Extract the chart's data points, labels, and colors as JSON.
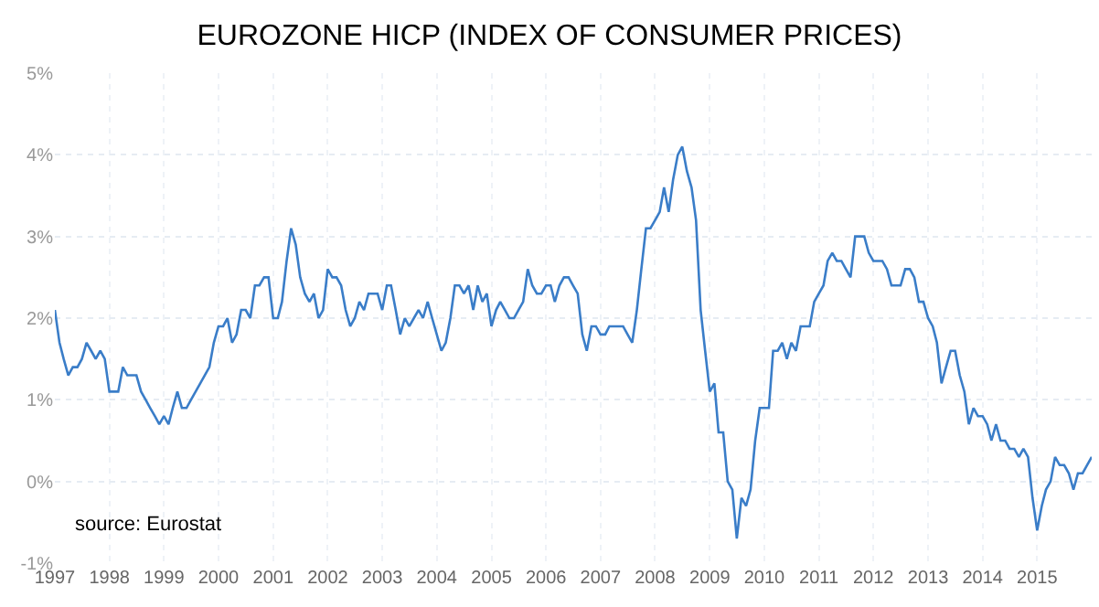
{
  "chart_data": {
    "type": "line",
    "title": "EUROZONE HICP (INDEX OF CONSUMER PRICES)",
    "x": [
      "1997-01",
      "1997-02",
      "1997-03",
      "1997-04",
      "1997-05",
      "1997-06",
      "1997-07",
      "1997-08",
      "1997-09",
      "1997-10",
      "1997-11",
      "1997-12",
      "1998-01",
      "1998-02",
      "1998-03",
      "1998-04",
      "1998-05",
      "1998-06",
      "1998-07",
      "1998-08",
      "1998-09",
      "1998-10",
      "1998-11",
      "1998-12",
      "1999-01",
      "1999-02",
      "1999-03",
      "1999-04",
      "1999-05",
      "1999-06",
      "1999-07",
      "1999-08",
      "1999-09",
      "1999-10",
      "1999-11",
      "1999-12",
      "2000-01",
      "2000-02",
      "2000-03",
      "2000-04",
      "2000-05",
      "2000-06",
      "2000-07",
      "2000-08",
      "2000-09",
      "2000-10",
      "2000-11",
      "2000-12",
      "2001-01",
      "2001-02",
      "2001-03",
      "2001-04",
      "2001-05",
      "2001-06",
      "2001-07",
      "2001-08",
      "2001-09",
      "2001-10",
      "2001-11",
      "2001-12",
      "2002-01",
      "2002-02",
      "2002-03",
      "2002-04",
      "2002-05",
      "2002-06",
      "2002-07",
      "2002-08",
      "2002-09",
      "2002-10",
      "2002-11",
      "2002-12",
      "2003-01",
      "2003-02",
      "2003-03",
      "2003-04",
      "2003-05",
      "2003-06",
      "2003-07",
      "2003-08",
      "2003-09",
      "2003-10",
      "2003-11",
      "2003-12",
      "2004-01",
      "2004-02",
      "2004-03",
      "2004-04",
      "2004-05",
      "2004-06",
      "2004-07",
      "2004-08",
      "2004-09",
      "2004-10",
      "2004-11",
      "2004-12",
      "2005-01",
      "2005-02",
      "2005-03",
      "2005-04",
      "2005-05",
      "2005-06",
      "2005-07",
      "2005-08",
      "2005-09",
      "2005-10",
      "2005-11",
      "2005-12",
      "2006-01",
      "2006-02",
      "2006-03",
      "2006-04",
      "2006-05",
      "2006-06",
      "2006-07",
      "2006-08",
      "2006-09",
      "2006-10",
      "2006-11",
      "2006-12",
      "2007-01",
      "2007-02",
      "2007-03",
      "2007-04",
      "2007-05",
      "2007-06",
      "2007-07",
      "2007-08",
      "2007-09",
      "2007-10",
      "2007-11",
      "2007-12",
      "2008-01",
      "2008-02",
      "2008-03",
      "2008-04",
      "2008-05",
      "2008-06",
      "2008-07",
      "2008-08",
      "2008-09",
      "2008-10",
      "2008-11",
      "2008-12",
      "2009-01",
      "2009-02",
      "2009-03",
      "2009-04",
      "2009-05",
      "2009-06",
      "2009-07",
      "2009-08",
      "2009-09",
      "2009-10",
      "2009-11",
      "2009-12",
      "2010-01",
      "2010-02",
      "2010-03",
      "2010-04",
      "2010-05",
      "2010-06",
      "2010-07",
      "2010-08",
      "2010-09",
      "2010-10",
      "2010-11",
      "2010-12",
      "2011-01",
      "2011-02",
      "2011-03",
      "2011-04",
      "2011-05",
      "2011-06",
      "2011-07",
      "2011-08",
      "2011-09",
      "2011-10",
      "2011-11",
      "2011-12",
      "2012-01",
      "2012-02",
      "2012-03",
      "2012-04",
      "2012-05",
      "2012-06",
      "2012-07",
      "2012-08",
      "2012-09",
      "2012-10",
      "2012-11",
      "2012-12",
      "2013-01",
      "2013-02",
      "2013-03",
      "2013-04",
      "2013-05",
      "2013-06",
      "2013-07",
      "2013-08",
      "2013-09",
      "2013-10",
      "2013-11",
      "2013-12",
      "2014-01",
      "2014-02",
      "2014-03",
      "2014-04",
      "2014-05",
      "2014-06",
      "2014-07",
      "2014-08",
      "2014-09",
      "2014-10",
      "2014-11",
      "2014-12",
      "2015-01",
      "2015-02",
      "2015-03",
      "2015-04",
      "2015-05",
      "2015-06",
      "2015-07",
      "2015-08",
      "2015-09",
      "2015-10",
      "2015-11",
      "2015-12",
      "2016-01"
    ],
    "series": [
      {
        "color": "#3a7dc8",
        "values": [
          2.1,
          1.7,
          1.5,
          1.3,
          1.4,
          1.4,
          1.5,
          1.7,
          1.6,
          1.5,
          1.6,
          1.5,
          1.1,
          1.1,
          1.1,
          1.4,
          1.3,
          1.3,
          1.3,
          1.1,
          1.0,
          0.9,
          0.8,
          0.7,
          0.8,
          0.7,
          0.9,
          1.1,
          0.9,
          0.9,
          1.0,
          1.1,
          1.2,
          1.3,
          1.4,
          1.7,
          1.9,
          1.9,
          2.0,
          1.7,
          1.8,
          2.1,
          2.1,
          2.0,
          2.4,
          2.4,
          2.5,
          2.5,
          2.0,
          2.0,
          2.2,
          2.7,
          3.1,
          2.9,
          2.5,
          2.3,
          2.2,
          2.3,
          2.0,
          2.1,
          2.6,
          2.5,
          2.5,
          2.4,
          2.1,
          1.9,
          2.0,
          2.2,
          2.1,
          2.3,
          2.3,
          2.3,
          2.1,
          2.4,
          2.4,
          2.1,
          1.8,
          2.0,
          1.9,
          2.0,
          2.1,
          2.0,
          2.2,
          2.0,
          1.8,
          1.6,
          1.7,
          2.0,
          2.4,
          2.4,
          2.3,
          2.4,
          2.1,
          2.4,
          2.2,
          2.3,
          1.9,
          2.1,
          2.2,
          2.1,
          2.0,
          2.0,
          2.1,
          2.2,
          2.6,
          2.4,
          2.3,
          2.3,
          2.4,
          2.4,
          2.2,
          2.4,
          2.5,
          2.5,
          2.4,
          2.3,
          1.8,
          1.6,
          1.9,
          1.9,
          1.8,
          1.8,
          1.9,
          1.9,
          1.9,
          1.9,
          1.8,
          1.7,
          2.1,
          2.6,
          3.1,
          3.1,
          3.2,
          3.3,
          3.6,
          3.3,
          3.7,
          4.0,
          4.1,
          3.8,
          3.6,
          3.2,
          2.1,
          1.6,
          1.1,
          1.2,
          0.6,
          0.6,
          0.0,
          -0.1,
          -0.7,
          -0.2,
          -0.3,
          -0.1,
          0.5,
          0.9,
          0.9,
          0.9,
          1.6,
          1.6,
          1.7,
          1.5,
          1.7,
          1.6,
          1.9,
          1.9,
          1.9,
          2.2,
          2.3,
          2.4,
          2.7,
          2.8,
          2.7,
          2.7,
          2.6,
          2.5,
          3.0,
          3.0,
          3.0,
          2.8,
          2.7,
          2.7,
          2.7,
          2.6,
          2.4,
          2.4,
          2.4,
          2.6,
          2.6,
          2.5,
          2.2,
          2.2,
          2.0,
          1.9,
          1.7,
          1.2,
          1.4,
          1.6,
          1.6,
          1.3,
          1.1,
          0.7,
          0.9,
          0.8,
          0.8,
          0.7,
          0.5,
          0.7,
          0.5,
          0.5,
          0.4,
          0.4,
          0.3,
          0.4,
          0.3,
          -0.2,
          -0.6,
          -0.3,
          -0.1,
          0.0,
          0.3,
          0.2,
          0.2,
          0.1,
          -0.1,
          0.1,
          0.1,
          0.2,
          0.3
        ]
      }
    ],
    "xlim": [
      "1997-01",
      "2016-01"
    ],
    "xticks": [
      {
        "value": "1997",
        "label": "1997"
      },
      {
        "value": "1998",
        "label": "1998"
      },
      {
        "value": "1999",
        "label": "1999"
      },
      {
        "value": "2000",
        "label": "2000"
      },
      {
        "value": "2001",
        "label": "2001"
      },
      {
        "value": "2002",
        "label": "2002"
      },
      {
        "value": "2003",
        "label": "2003"
      },
      {
        "value": "2004",
        "label": "2004"
      },
      {
        "value": "2005",
        "label": "2005"
      },
      {
        "value": "2006",
        "label": "2006"
      },
      {
        "value": "2007",
        "label": "2007"
      },
      {
        "value": "2008",
        "label": "2008"
      },
      {
        "value": "2009",
        "label": "2009"
      },
      {
        "value": "2010",
        "label": "2010"
      },
      {
        "value": "2011",
        "label": "2011"
      },
      {
        "value": "2012",
        "label": "2012"
      },
      {
        "value": "2013",
        "label": "2013"
      },
      {
        "value": "2014",
        "label": "2014"
      },
      {
        "value": "2015",
        "label": "2015"
      }
    ],
    "ylim": [
      -1,
      5
    ],
    "yticks": [
      {
        "value": -1,
        "label": "-1%"
      },
      {
        "value": 0,
        "label": "0%"
      },
      {
        "value": 1,
        "label": "1%"
      },
      {
        "value": 2,
        "label": "2%"
      },
      {
        "value": 3,
        "label": "3%"
      },
      {
        "value": 4,
        "label": "4%"
      },
      {
        "value": 5,
        "label": "5%"
      }
    ],
    "grid": true,
    "annotations": [
      "source: Eurostat"
    ]
  }
}
